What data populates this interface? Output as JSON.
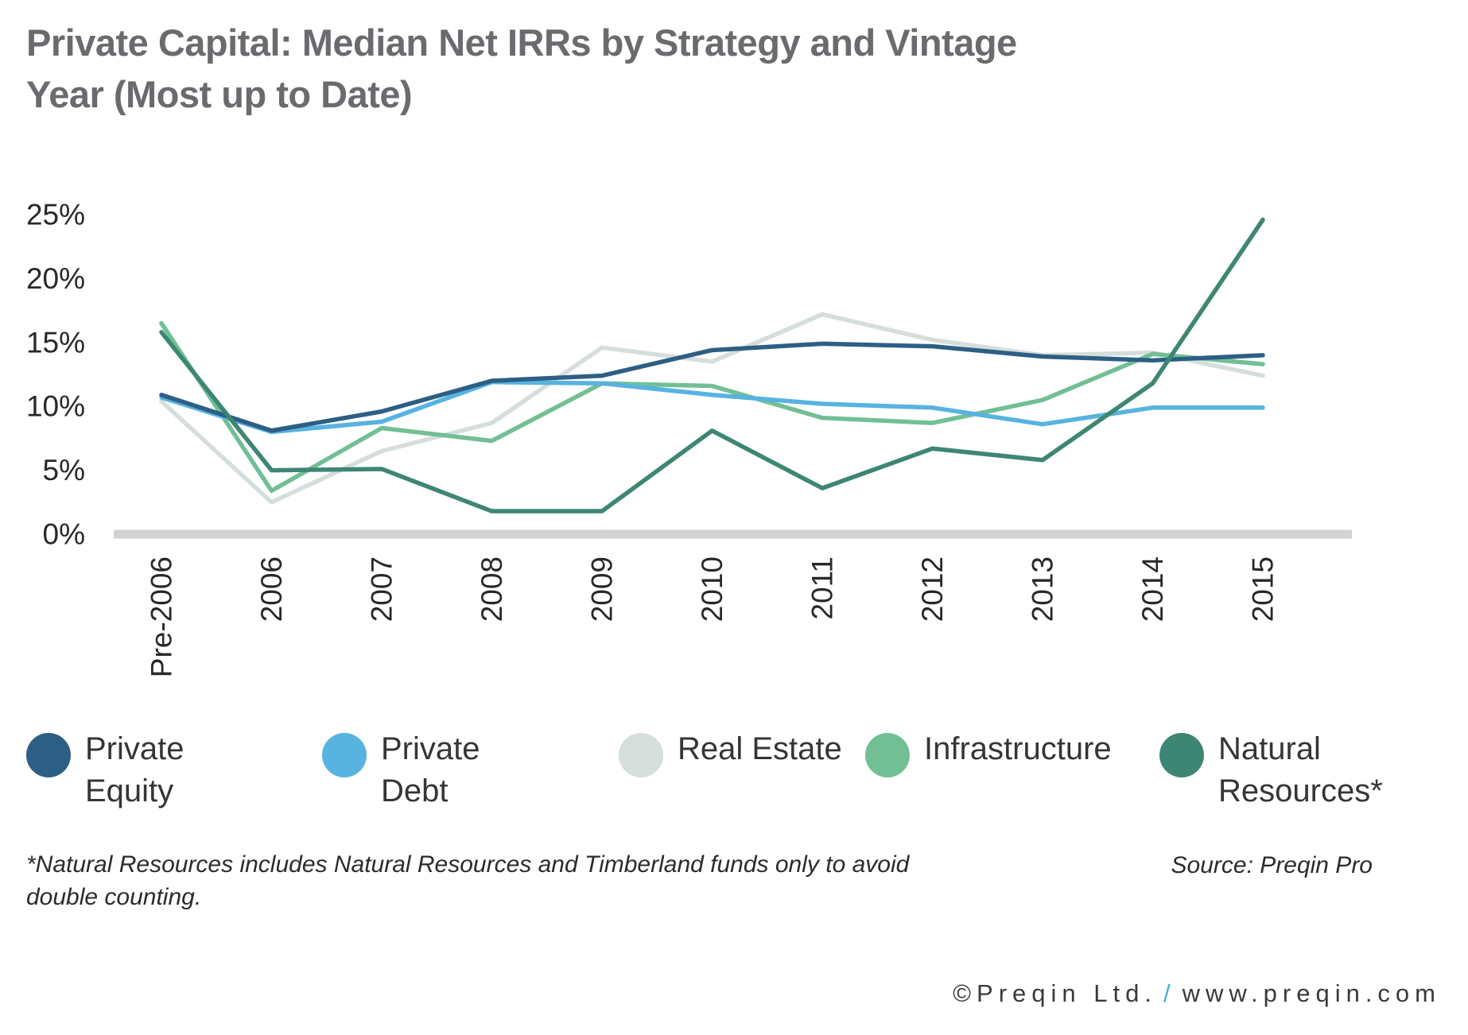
{
  "title": "Private Capital: Median Net IRRs by Strategy and Vintage Year (Most up to Date)",
  "chart_data": {
    "type": "line",
    "categories": [
      "Pre-2006",
      "2006",
      "2007",
      "2008",
      "2009",
      "2010",
      "2011",
      "2012",
      "2013",
      "2014",
      "2015"
    ],
    "series": [
      {
        "name": "Private Equity",
        "color": "#2d5f84",
        "values": [
          10.9,
          8.1,
          9.6,
          12.0,
          12.4,
          14.4,
          14.9,
          14.7,
          13.9,
          13.6,
          14.0
        ]
      },
      {
        "name": "Private Debt",
        "color": "#57b3e0",
        "values": [
          10.7,
          8.0,
          8.8,
          11.9,
          11.8,
          10.9,
          10.2,
          9.9,
          8.6,
          9.9,
          9.9
        ]
      },
      {
        "name": "Real Estate",
        "color": "#d5dedb",
        "values": [
          10.4,
          2.5,
          6.5,
          8.7,
          14.6,
          13.5,
          17.2,
          15.2,
          14.0,
          14.2,
          12.4
        ]
      },
      {
        "name": "Infrastructure",
        "color": "#72bf95",
        "values": [
          16.5,
          3.4,
          8.3,
          7.3,
          11.8,
          11.6,
          9.1,
          8.7,
          10.5,
          14.1,
          13.3
        ]
      },
      {
        "name": "Natural Resources*",
        "color": "#3e8674",
        "values": [
          15.8,
          5.0,
          5.1,
          1.8,
          1.8,
          8.1,
          3.6,
          6.7,
          5.8,
          11.8,
          24.6
        ]
      }
    ],
    "yticks": [
      {
        "label": "0%",
        "value": 0
      },
      {
        "label": "5%",
        "value": 5
      },
      {
        "label": "10%",
        "value": 10
      },
      {
        "label": "15%",
        "value": 15
      },
      {
        "label": "20%",
        "value": 20
      },
      {
        "label": "25%",
        "value": 25
      }
    ],
    "ylim": [
      0,
      25
    ],
    "grid": false,
    "legend_position": "bottom",
    "baseline_color": "#d2d4d3"
  },
  "footnote": "*Natural Resources includes Natural Resources and Timberland funds only to avoid double counting.",
  "source": "Source: Preqin Pro",
  "copyright": {
    "prefix": "©Preqin Ltd.",
    "separator": "/",
    "suffix": "www.preqin.com"
  }
}
